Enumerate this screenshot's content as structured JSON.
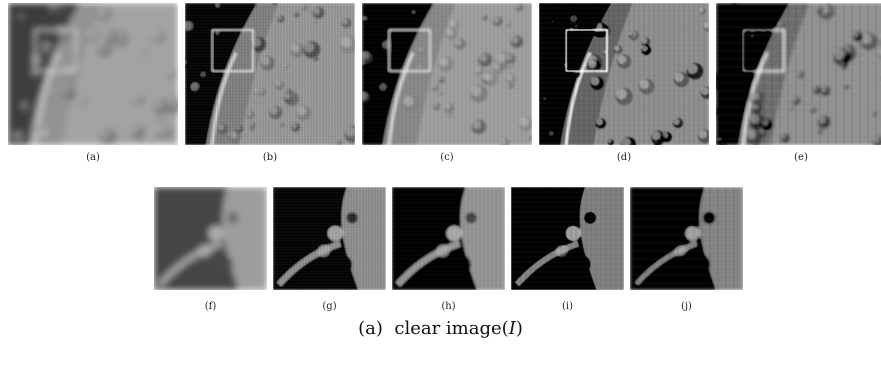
{
  "panels_top": [
    {
      "label": "(a)",
      "style": "blur"
    },
    {
      "label": "(b)",
      "style": "ringing"
    },
    {
      "label": "(c)",
      "style": "sharp"
    },
    {
      "label": "(d)",
      "style": "contrast"
    },
    {
      "label": "(e)",
      "style": "halo"
    }
  ],
  "panels_bottom": [
    {
      "label": "(f)",
      "style": "blur"
    },
    {
      "label": "(g)",
      "style": "ringing"
    },
    {
      "label": "(h)",
      "style": "sharp"
    },
    {
      "label": "(i)",
      "style": "contrast"
    },
    {
      "label": "(j)",
      "style": "halo"
    }
  ],
  "caption": {
    "prefix": "(a)",
    "text": "clear image(",
    "symbol": "I",
    "suffix": ")"
  }
}
